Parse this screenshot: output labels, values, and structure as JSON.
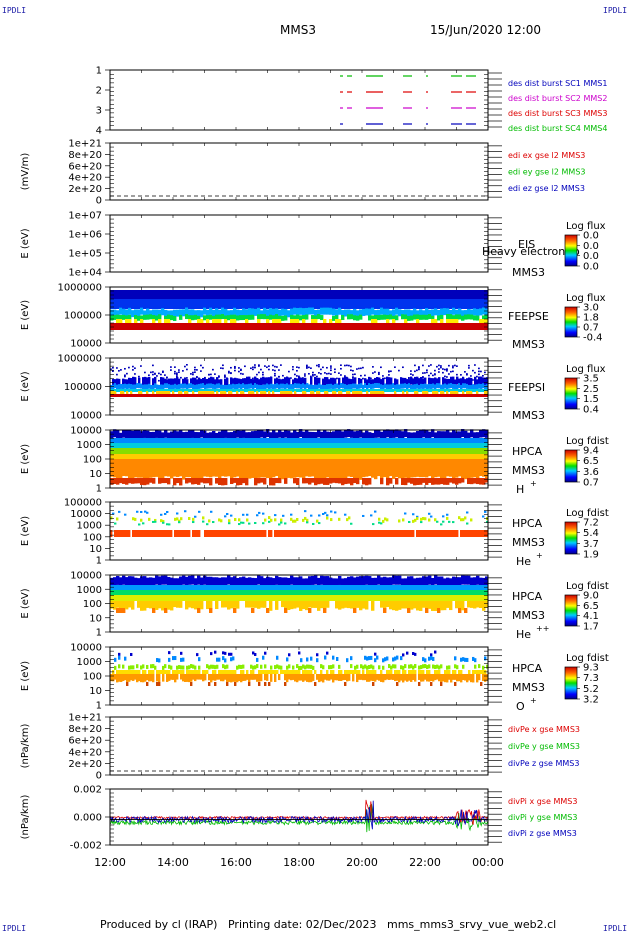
{
  "corners": {
    "tl": "IPDLI",
    "tr": "IPDLI",
    "bl": "IPDLI",
    "br": "IPDLI"
  },
  "header": {
    "spacecraft": "MMS3",
    "date": "15/Jun/2020 12:00"
  },
  "footer": {
    "produced_by": "Produced by cl (IRAP)",
    "printing_date": "Printing date: 02/Dec/2023",
    "file": "mms_mms3_srvy_vue_web2.cl"
  },
  "colors": {
    "red": "#dd0000",
    "green": "#00bb00",
    "blue": "#0000bb",
    "magenta": "#cc00cc",
    "black": "#000000"
  },
  "chart_data": [
    {
      "type": "line",
      "panel": "burst",
      "ylabel": "",
      "yticks": [
        "1",
        "2",
        "3",
        "4"
      ],
      "labels": [
        {
          "text": "des dist burst SC1 MMS1",
          "color": "#0000bb"
        },
        {
          "text": "des dist burst SC2 MMS2",
          "color": "#cc00cc"
        },
        {
          "text": "des dist burst SC3 MMS3",
          "color": "#dd0000"
        },
        {
          "text": "des dist burst SC4 MMS4",
          "color": "#00bb00"
        }
      ]
    },
    {
      "type": "line",
      "panel": "edi",
      "ylabel": "(mV/m)",
      "yticks": [
        "1e+21",
        "8e+20",
        "6e+20",
        "4e+20",
        "2e+20",
        "0"
      ],
      "labels": [
        {
          "text": "edi ex gse l2 MMS3",
          "color": "#dd0000"
        },
        {
          "text": "edi ey gse l2 MMS3",
          "color": "#00bb00"
        },
        {
          "text": "edi ez gse l2 MMS3",
          "color": "#0000bb"
        }
      ]
    },
    {
      "type": "heatmap",
      "panel": "eis",
      "ylabel": "E (eV)",
      "yticks": [
        "1e+07",
        "1e+06",
        "1e+05",
        "1e+04"
      ],
      "labels": [
        "EIS",
        "MMS3"
      ],
      "overlay": "Heavy electron to",
      "colorbar": {
        "title": "Log flux",
        "ticks": [
          "0.0",
          "0.0",
          "0.0",
          "0.0"
        ]
      }
    },
    {
      "type": "heatmap",
      "panel": "feepse",
      "ylabel": "E (eV)",
      "yticks": [
        "1000000",
        "100000",
        "10000"
      ],
      "labels": [
        "FEEPSE",
        "MMS3"
      ],
      "colorbar": {
        "title": "Log flux",
        "ticks": [
          "3.0",
          "1.8",
          "0.7",
          "-0.4"
        ]
      }
    },
    {
      "type": "heatmap",
      "panel": "feepsi",
      "ylabel": "E (eV)",
      "yticks": [
        "1000000",
        "100000",
        "10000"
      ],
      "labels": [
        "FEEPSI",
        "MMS3"
      ],
      "colorbar": {
        "title": "Log flux",
        "ticks": [
          "3.5",
          "2.5",
          "1.5",
          "0.4"
        ]
      }
    },
    {
      "type": "heatmap",
      "panel": "hpca_h",
      "ylabel": "E (eV)",
      "yticks": [
        "10000",
        "1000",
        "100",
        "10",
        "1"
      ],
      "labels": [
        "HPCA",
        "MMS3",
        "H",
        "+"
      ],
      "colorbar": {
        "title": "Log fdist",
        "ticks": [
          "9.4",
          "6.5",
          "3.6",
          "0.7"
        ]
      }
    },
    {
      "type": "heatmap",
      "panel": "hpca_he",
      "ylabel": "E (eV)",
      "yticks": [
        "100000",
        "10000",
        "1000",
        "100",
        "10",
        "1"
      ],
      "labels": [
        "HPCA",
        "MMS3",
        "He",
        "+"
      ],
      "colorbar": {
        "title": "Log fdist",
        "ticks": [
          "7.2",
          "5.4",
          "3.7",
          "1.9"
        ]
      }
    },
    {
      "type": "heatmap",
      "panel": "hpca_hepp",
      "ylabel": "E (eV)",
      "yticks": [
        "10000",
        "1000",
        "100",
        "10",
        "1"
      ],
      "labels": [
        "HPCA",
        "MMS3",
        "He",
        "++"
      ],
      "colorbar": {
        "title": "Log fdist",
        "ticks": [
          "9.0",
          "6.5",
          "4.1",
          "1.7"
        ]
      }
    },
    {
      "type": "heatmap",
      "panel": "hpca_o",
      "ylabel": "E (eV)",
      "yticks": [
        "10000",
        "1000",
        "100",
        "10",
        "1"
      ],
      "labels": [
        "HPCA",
        "MMS3",
        "O",
        "+"
      ],
      "colorbar": {
        "title": "Log fdist",
        "ticks": [
          "9.3",
          "7.3",
          "5.2",
          "3.2"
        ]
      }
    },
    {
      "type": "line",
      "panel": "divpe",
      "ylabel": "(nPa/km)",
      "yticks": [
        "1e+21",
        "8e+20",
        "6e+20",
        "4e+20",
        "2e+20",
        "0"
      ],
      "labels": [
        {
          "text": "divPe x gse MMS3",
          "color": "#dd0000"
        },
        {
          "text": "divPe y gse MMS3",
          "color": "#00bb00"
        },
        {
          "text": "divPe z gse MMS3",
          "color": "#0000bb"
        }
      ]
    },
    {
      "type": "line",
      "panel": "divpi",
      "ylabel": "(nPa/km)",
      "yticks": [
        "0.002",
        "0.000",
        "-0.002"
      ],
      "ylim": [
        -0.0025,
        0.003
      ],
      "labels": [
        {
          "text": "divPi x gse MMS3",
          "color": "#dd0000"
        },
        {
          "text": "divPi y gse MMS3",
          "color": "#00bb00"
        },
        {
          "text": "divPi z gse MMS3",
          "color": "#0000bb"
        }
      ]
    }
  ],
  "xaxis": {
    "ticks": [
      "12:00",
      "14:00",
      "16:00",
      "18:00",
      "20:00",
      "22:00",
      "00:00"
    ]
  }
}
